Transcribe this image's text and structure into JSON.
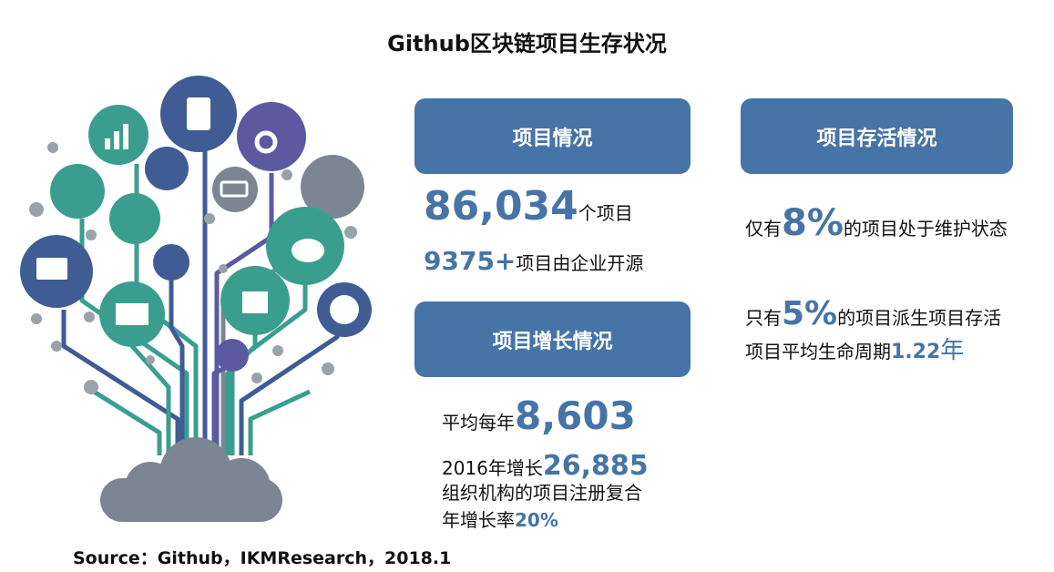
{
  "title": "Github区块链项目生存状况",
  "panels": [
    {
      "heading": "项目情况",
      "lines": [
        {
          "value": "86,034",
          "suffix": "个项目"
        },
        {
          "value": "9375+",
          "suffix": "项目由企业开源"
        }
      ]
    },
    {
      "heading": "项目存活情况",
      "lines": [
        {
          "prefix": "仅有",
          "value": "8%",
          "suffix": "的项目处于维护状态"
        },
        {
          "prefix": "只有",
          "value": "5%",
          "suffix": "的项目派生项目存活"
        },
        {
          "prefix": "项目平均生命周期",
          "value": "1.22",
          "suffix": "年"
        }
      ]
    },
    {
      "heading": "项目增长情况",
      "lines": [
        {
          "prefix": "平均每年",
          "value": "8,603"
        },
        {
          "prefix": "2016年增长",
          "value": "26,885"
        },
        {
          "prefix": "组织机构的项目注册复合年增长率",
          "value": "20%"
        }
      ]
    }
  ],
  "source": "Source：Github，IKMResearch，2018.1"
}
